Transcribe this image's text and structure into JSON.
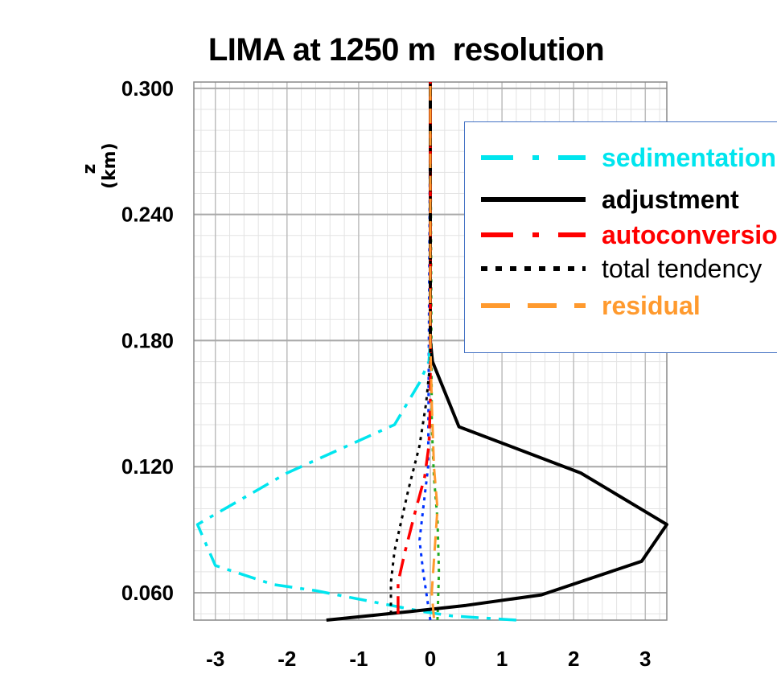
{
  "chart_data": {
    "type": "line",
    "title": "LIMA at 1250 m  resolution",
    "xlabel": "",
    "ylabel": "z (km)",
    "xlim": [
      -3.3,
      3.3
    ],
    "ylim": [
      0.047,
      0.303
    ],
    "x_ticks": [
      "-3",
      "-2",
      "-1",
      "0",
      "1",
      "2",
      "3"
    ],
    "y_ticks": [
      "0.300",
      "0.240",
      "0.180",
      "0.120",
      "0.060"
    ],
    "grid": true,
    "legend_position": "top-right",
    "series": [
      {
        "name": "sedimentation",
        "color": "#00e5ee",
        "dash": "dashdot",
        "points": [
          [
            1.2,
            0.047
          ],
          [
            0.3,
            0.049
          ],
          [
            -0.1,
            0.051
          ],
          [
            -1.6,
            0.061
          ],
          [
            -2.2,
            0.064
          ],
          [
            -3.0,
            0.073
          ],
          [
            -3.25,
            0.0925
          ],
          [
            -2.0,
            0.117
          ],
          [
            -0.5,
            0.14
          ],
          [
            -0.15,
            0.16
          ],
          [
            -0.02,
            0.17
          ],
          [
            0,
            0.18
          ],
          [
            0,
            0.303
          ]
        ]
      },
      {
        "name": "adjustment",
        "color": "#000000",
        "dash": "solid",
        "points": [
          [
            -1.45,
            0.047
          ],
          [
            -0.3,
            0.051
          ],
          [
            0.5,
            0.054
          ],
          [
            1.55,
            0.059
          ],
          [
            2.95,
            0.075
          ],
          [
            3.3,
            0.0925
          ],
          [
            2.1,
            0.117
          ],
          [
            0.4,
            0.139
          ],
          [
            0.03,
            0.17
          ],
          [
            0,
            0.18
          ],
          [
            0,
            0.303
          ]
        ]
      },
      {
        "name": "autoconversion",
        "color": "#ff0000",
        "dash": "dashdot",
        "points": [
          [
            -0.45,
            0.05
          ],
          [
            -0.45,
            0.065
          ],
          [
            -0.35,
            0.08
          ],
          [
            -0.2,
            0.1
          ],
          [
            -0.08,
            0.115
          ],
          [
            -0.02,
            0.13
          ],
          [
            0,
            0.15
          ],
          [
            0,
            0.303
          ]
        ]
      },
      {
        "name": "total tendency",
        "color": "#000000",
        "dash": "dotted",
        "points": [
          [
            -0.55,
            0.05
          ],
          [
            -0.55,
            0.065
          ],
          [
            -0.5,
            0.08
          ],
          [
            -0.3,
            0.11
          ],
          [
            -0.15,
            0.13
          ],
          [
            -0.06,
            0.15
          ],
          [
            0,
            0.17
          ],
          [
            0,
            0.303
          ]
        ]
      },
      {
        "name": "residual",
        "color": "#ff9a2e",
        "dash": "dashed",
        "points": [
          [
            0.05,
            0.048
          ],
          [
            0.02,
            0.06
          ],
          [
            0.06,
            0.08
          ],
          [
            0.1,
            0.1
          ],
          [
            0.05,
            0.12
          ],
          [
            0.02,
            0.15
          ],
          [
            0,
            0.18
          ],
          [
            0,
            0.303
          ]
        ]
      }
    ],
    "extra_lines": [
      {
        "color": "#0033ff",
        "dash": "dotted",
        "points": [
          [
            0,
            0.047
          ],
          [
            -0.1,
            0.07
          ],
          [
            -0.15,
            0.085
          ],
          [
            -0.1,
            0.1
          ],
          [
            -0.03,
            0.12
          ],
          [
            0,
            0.303
          ]
        ]
      },
      {
        "color": "#22aa22",
        "dash": "dotted",
        "points": [
          [
            0.1,
            0.047
          ],
          [
            0.12,
            0.07
          ],
          [
            0.1,
            0.095
          ],
          [
            0.05,
            0.115
          ],
          [
            0.02,
            0.14
          ],
          [
            0,
            0.303
          ]
        ]
      }
    ]
  }
}
